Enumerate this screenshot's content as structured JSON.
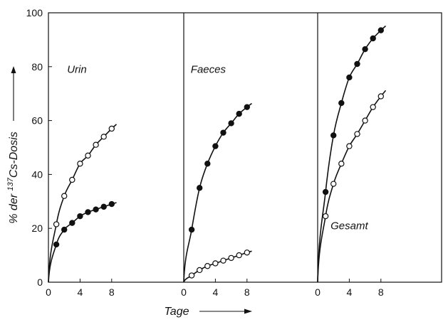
{
  "chart_data": {
    "type": "scatter",
    "ylabel": "% der 137Cs-Dosis",
    "ylabel_parts": {
      "prefix": "% der ",
      "superscript": "137",
      "suffix": "Cs-Dosis"
    },
    "xlabel": "Tage",
    "ylim": [
      0,
      100
    ],
    "yticks": [
      0,
      20,
      40,
      60,
      80,
      100
    ],
    "xticks": [
      0,
      4,
      8
    ],
    "xlim": [
      0,
      9
    ],
    "grid": false,
    "panels": [
      {
        "title": "Urin",
        "series": [
          {
            "marker": "open",
            "x": [
              1,
              2,
              3,
              4,
              5,
              6,
              7,
              8
            ],
            "y": [
              21.5,
              32,
              38,
              44,
              47,
              51,
              54,
              57
            ]
          },
          {
            "marker": "filled",
            "x": [
              1,
              2,
              3,
              4,
              5,
              6,
              7,
              8
            ],
            "y": [
              14,
              19.5,
              22,
              24.5,
              26,
              27,
              28,
              29
            ]
          }
        ]
      },
      {
        "title": "Faeces",
        "series": [
          {
            "marker": "filled",
            "x": [
              1,
              2,
              3,
              4,
              5,
              6,
              7,
              8
            ],
            "y": [
              19.5,
              35,
              44,
              50.5,
              55.5,
              59,
              62.5,
              65
            ]
          },
          {
            "marker": "open",
            "x": [
              1,
              2,
              3,
              4,
              5,
              6,
              7,
              8
            ],
            "y": [
              2.5,
              4.5,
              6,
              7,
              8,
              9,
              10,
              11
            ]
          }
        ]
      },
      {
        "title": "Gesamt",
        "series": [
          {
            "marker": "filled",
            "x": [
              1,
              2,
              3,
              4,
              5,
              6,
              7,
              8
            ],
            "y": [
              33.5,
              54.5,
              66.5,
              76,
              81,
              86.5,
              90.5,
              93.5
            ]
          },
          {
            "marker": "open",
            "x": [
              1,
              2,
              3,
              4,
              5,
              6,
              7,
              8
            ],
            "y": [
              24.5,
              36.5,
              44,
              50.5,
              55,
              60,
              65,
              69
            ]
          }
        ]
      }
    ]
  }
}
